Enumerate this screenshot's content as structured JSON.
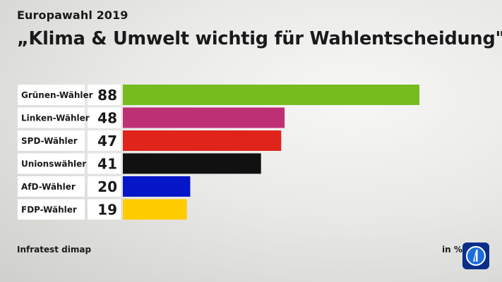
{
  "header": {
    "subtitle": "Europawahl 2019",
    "title": "„Klima & Umwelt wichtig für Wahlentscheidung\""
  },
  "footer": {
    "source": "Infratest dimap",
    "unit": "in %"
  },
  "chart_data": {
    "type": "bar",
    "orientation": "horizontal",
    "categories": [
      "Grünen-Wähler",
      "Linken-Wähler",
      "SPD-Wähler",
      "Unionswähler",
      "AfD-Wähler",
      "FDP-Wähler"
    ],
    "values": [
      88,
      48,
      47,
      41,
      20,
      19
    ],
    "colors": [
      "#76bc1e",
      "#be3075",
      "#e0241b",
      "#111111",
      "#0515c8",
      "#ffcc00"
    ],
    "xlim": [
      0,
      88
    ],
    "grid": false,
    "legend": "none"
  }
}
